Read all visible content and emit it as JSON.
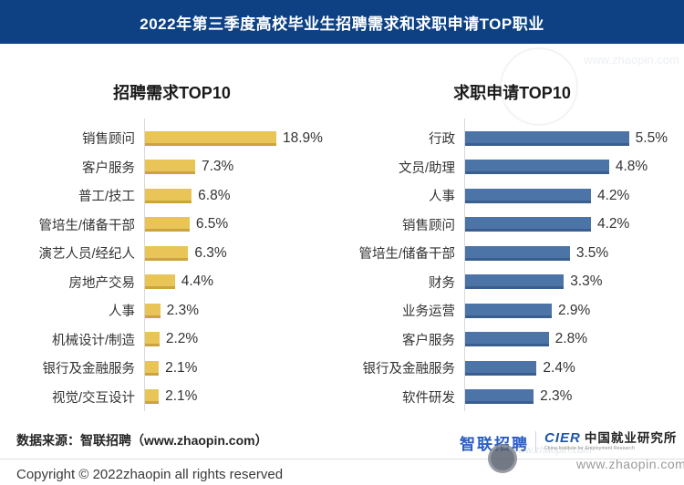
{
  "banner": {
    "title": "2022年第三季度高校毕业生招聘需求和求职申请TOP职业"
  },
  "colors": {
    "banner_bg": "#0D4184",
    "demand_bar": "#E9C557",
    "demand_bar_edge": "#CBA43C",
    "apply_bar": "#4C74A6",
    "apply_bar_edge": "#3A5F8E",
    "axis_line": "#D9D9D9"
  },
  "chart_data": [
    {
      "type": "bar",
      "orientation": "horizontal",
      "title": "招聘需求TOP10",
      "categories": [
        "销售顾问",
        "客户服务",
        "普工/技工",
        "管培生/储备干部",
        "演艺人员/经纪人",
        "房地产交易",
        "人事",
        "机械设计/制造",
        "银行及金融服务",
        "视觉/交互设计"
      ],
      "values": [
        18.9,
        7.3,
        6.8,
        6.5,
        6.3,
        4.4,
        2.3,
        2.2,
        2.1,
        2.1
      ],
      "value_suffix": "%",
      "xlabel": "",
      "ylabel": "",
      "xlim": [
        0,
        19
      ],
      "grid": false,
      "legend": false,
      "bar_color": "#E9C557",
      "bar_edge_color": "#CBA43C"
    },
    {
      "type": "bar",
      "orientation": "horizontal",
      "title": "求职申请TOP10",
      "categories": [
        "行政",
        "文员/助理",
        "人事",
        "销售顾问",
        "管培生/储备干部",
        "财务",
        "业务运营",
        "客户服务",
        "银行及金融服务",
        "软件研发"
      ],
      "values": [
        5.5,
        4.8,
        4.2,
        4.2,
        3.5,
        3.3,
        2.9,
        2.8,
        2.4,
        2.3
      ],
      "value_suffix": "%",
      "xlabel": "",
      "ylabel": "",
      "xlim": [
        0,
        5.6
      ],
      "grid": false,
      "legend": false,
      "bar_color": "#4C74A6",
      "bar_edge_color": "#3A5F8E"
    }
  ],
  "footer": {
    "source": "数据来源：智联招聘（www.zhaopin.com）",
    "copyright": "Copyright © 2022zhaopin all rights reserved"
  },
  "footer_logos": {
    "zhaopin_logo_text": "智联招聘",
    "cier_acronym": "CIER",
    "cier_name": "中国就业研究所",
    "cier_subtitle": "China Institute for Employment Research",
    "website": "www.zhaopin.com"
  },
  "watermark": {
    "text": "www.zhaopin.com"
  }
}
